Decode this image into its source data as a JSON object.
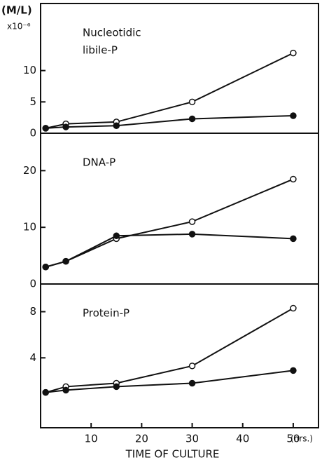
{
  "chart_data": [
    {
      "type": "line",
      "label_lines": [
        "Nucleotidic",
        "libile-P"
      ],
      "ylabel": "(M/L)",
      "y_multiplier": "x10⁻⁶",
      "x": [
        1,
        5,
        15,
        30,
        50
      ],
      "xlim": [
        0,
        55
      ],
      "series": [
        {
          "color": "#111111",
          "marker": "open",
          "values": [
            0.8,
            1.5,
            1.8,
            5,
            12.8
          ]
        },
        {
          "color": "#111111",
          "marker": "filled",
          "values": [
            0.8,
            1.0,
            1.2,
            2.3,
            2.8
          ]
        }
      ],
      "ylim": [
        0,
        20.7
      ],
      "yticks": [
        0,
        5,
        10
      ]
    },
    {
      "type": "line",
      "label_lines": [
        "DNA-P"
      ],
      "x": [
        1,
        5,
        15,
        30,
        50
      ],
      "xlim": [
        0,
        55
      ],
      "series": [
        {
          "color": "#111111",
          "marker": "open",
          "values": [
            3,
            4,
            8,
            11,
            18.5
          ]
        },
        {
          "color": "#111111",
          "marker": "filled",
          "values": [
            3,
            4,
            8.5,
            8.8,
            8
          ]
        }
      ],
      "ylim": [
        0,
        26.6
      ],
      "yticks": [
        0,
        10,
        20
      ]
    },
    {
      "type": "line",
      "label_lines": [
        "Protein-P"
      ],
      "x": [
        1,
        5,
        15,
        30,
        50
      ],
      "xlim": [
        0,
        55
      ],
      "xticks": [
        10,
        20,
        30,
        40,
        50
      ],
      "xlabel": "TIME OF CULTURE",
      "xunit": "(hrs.)",
      "series": [
        {
          "color": "#111111",
          "marker": "open",
          "values": [
            1,
            1.5,
            1.8,
            3.3,
            8.3
          ]
        },
        {
          "color": "#111111",
          "marker": "filled",
          "values": [
            1,
            1.2,
            1.5,
            1.8,
            2.9
          ]
        }
      ],
      "ylim": [
        -2.06,
        10.4
      ],
      "yticks": [
        4,
        8
      ]
    }
  ]
}
